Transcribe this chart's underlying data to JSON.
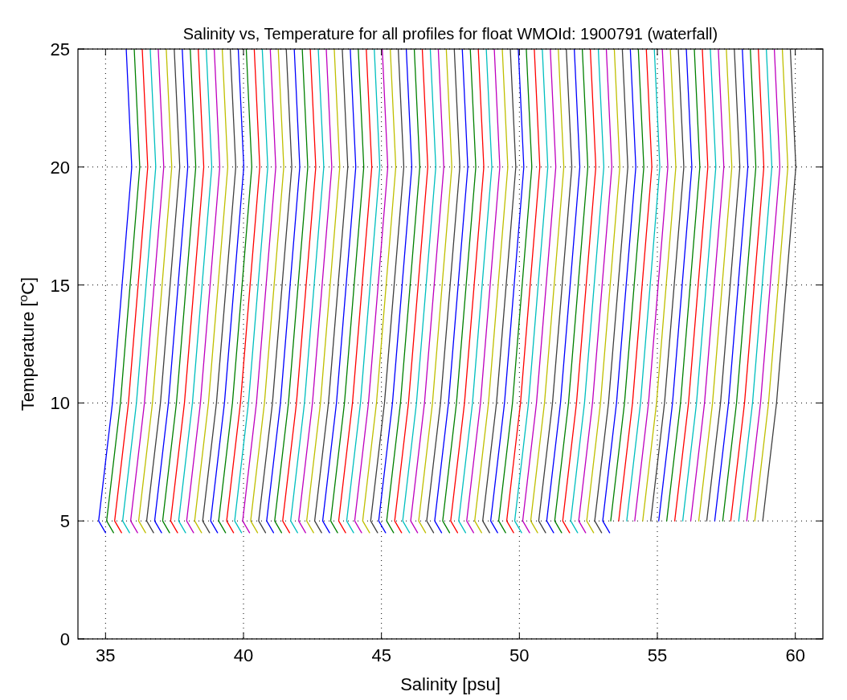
{
  "chart_data": {
    "type": "line",
    "title": "Salinity vs, Temperature for all profiles for float WMOId: 1900791 (waterfall)",
    "xlabel": "Salinity [psu]",
    "ylabel": "Temperature [$^{o}$C]",
    "xlim": [
      34,
      61
    ],
    "ylim": [
      0,
      25
    ],
    "xticks": [
      35,
      40,
      45,
      50,
      55,
      60
    ],
    "yticks": [
      0,
      5,
      10,
      15,
      20,
      25
    ],
    "grid": true,
    "series": [
      {
        "color": "#0000ff",
        "x": [
          35.0,
          34.75,
          35.25,
          35.6,
          35.95,
          35.75
        ],
        "values": [
          4.5,
          5,
          10,
          15,
          20,
          25
        ]
      },
      {
        "color": "#008000",
        "x": [
          35.29,
          35.04,
          35.54,
          35.89,
          36.24,
          36.04
        ],
        "values": [
          4.5,
          5,
          10,
          15,
          20,
          25
        ]
      },
      {
        "color": "#ff0000",
        "x": [
          35.58,
          35.33,
          35.83,
          36.18,
          36.53,
          36.33
        ],
        "values": [
          4.5,
          5,
          10,
          15,
          20,
          25
        ]
      },
      {
        "color": "#00bfbf",
        "x": [
          35.87,
          35.62,
          36.12,
          36.47,
          36.82,
          36.62
        ],
        "values": [
          4.5,
          5,
          10,
          15,
          20,
          25
        ]
      },
      {
        "color": "#bf00bf",
        "x": [
          36.16,
          35.91,
          36.41,
          36.76,
          37.11,
          36.91
        ],
        "values": [
          4.5,
          5,
          10,
          15,
          20,
          25
        ]
      },
      {
        "color": "#bfbf00",
        "x": [
          36.45,
          36.2,
          36.7,
          37.05,
          37.4,
          37.2
        ],
        "values": [
          4.5,
          5,
          10,
          15,
          20,
          25
        ]
      },
      {
        "color": "#404040",
        "x": [
          36.74,
          36.49,
          36.99,
          37.34,
          37.69,
          37.49
        ],
        "values": [
          4.5,
          5,
          10,
          15,
          20,
          25
        ]
      },
      {
        "color": "#0000ff",
        "x": [
          37.03,
          36.78,
          37.28,
          37.63,
          37.98,
          37.78
        ],
        "values": [
          4.5,
          5,
          10,
          15,
          20,
          25
        ]
      },
      {
        "color": "#008000",
        "x": [
          37.32,
          37.07,
          37.57,
          37.92,
          38.27,
          38.07
        ],
        "values": [
          4.5,
          5,
          10,
          15,
          20,
          25
        ]
      },
      {
        "color": "#ff0000",
        "x": [
          37.61,
          37.36,
          37.86,
          38.21,
          38.56,
          38.36
        ],
        "values": [
          4.5,
          5,
          10,
          15,
          20,
          25
        ]
      },
      {
        "color": "#00bfbf",
        "x": [
          37.9,
          37.65,
          38.15,
          38.5,
          38.85,
          38.65
        ],
        "values": [
          4.5,
          5,
          10,
          15,
          20,
          25
        ]
      },
      {
        "color": "#bf00bf",
        "x": [
          38.19,
          37.94,
          38.44,
          38.79,
          39.14,
          38.94
        ],
        "values": [
          4.5,
          5,
          10,
          15,
          20,
          25
        ]
      },
      {
        "color": "#bfbf00",
        "x": [
          38.48,
          38.23,
          38.73,
          39.08,
          39.43,
          39.23
        ],
        "values": [
          4.5,
          5,
          10,
          15,
          20,
          25
        ]
      },
      {
        "color": "#404040",
        "x": [
          38.77,
          38.52,
          39.02,
          39.37,
          39.72,
          39.52
        ],
        "values": [
          4.5,
          5,
          10,
          15,
          20,
          25
        ]
      },
      {
        "color": "#0000ff",
        "x": [
          39.06,
          38.81,
          39.31,
          39.66,
          40.01,
          39.81
        ],
        "values": [
          4.5,
          5,
          10,
          15,
          20,
          25
        ]
      },
      {
        "color": "#008000",
        "x": [
          39.35,
          39.1,
          39.6,
          39.95,
          40.3,
          40.1
        ],
        "values": [
          4.5,
          5,
          10,
          15,
          20,
          25
        ]
      },
      {
        "color": "#ff0000",
        "x": [
          39.64,
          39.39,
          39.89,
          40.24,
          40.59,
          40.39
        ],
        "values": [
          4.5,
          5,
          10,
          15,
          20,
          25
        ]
      },
      {
        "color": "#00bfbf",
        "x": [
          39.93,
          39.68,
          40.18,
          40.53,
          40.88,
          40.68
        ],
        "values": [
          4.5,
          5,
          10,
          15,
          20,
          25
        ]
      },
      {
        "color": "#bf00bf",
        "x": [
          40.22,
          39.97,
          40.47,
          40.82,
          41.17,
          40.97
        ],
        "values": [
          4.5,
          5,
          10,
          15,
          20,
          25
        ]
      },
      {
        "color": "#bfbf00",
        "x": [
          40.51,
          40.26,
          40.76,
          41.11,
          41.46,
          41.26
        ],
        "values": [
          4.5,
          5,
          10,
          15,
          20,
          25
        ]
      },
      {
        "color": "#404040",
        "x": [
          40.8,
          40.55,
          41.05,
          41.4,
          41.75,
          41.55
        ],
        "values": [
          4.5,
          5,
          10,
          15,
          20,
          25
        ]
      },
      {
        "color": "#0000ff",
        "x": [
          41.09,
          40.84,
          41.34,
          41.69,
          42.04,
          41.84
        ],
        "values": [
          4.5,
          5,
          10,
          15,
          20,
          25
        ]
      },
      {
        "color": "#008000",
        "x": [
          41.38,
          41.13,
          41.63,
          41.98,
          42.33,
          42.13
        ],
        "values": [
          4.5,
          5,
          10,
          15,
          20,
          25
        ]
      },
      {
        "color": "#ff0000",
        "x": [
          41.67,
          41.42,
          41.92,
          42.27,
          42.62,
          42.42
        ],
        "values": [
          4.5,
          5,
          10,
          15,
          20,
          25
        ]
      },
      {
        "color": "#00bfbf",
        "x": [
          41.96,
          41.71,
          42.21,
          42.56,
          42.91,
          42.71
        ],
        "values": [
          4.5,
          5,
          10,
          15,
          20,
          25
        ]
      },
      {
        "color": "#bf00bf",
        "x": [
          42.25,
          42,
          42.5,
          42.85,
          43.2,
          43
        ],
        "values": [
          4.5,
          5,
          10,
          15,
          20,
          25
        ]
      },
      {
        "color": "#bfbf00",
        "x": [
          42.54,
          42.29,
          42.79,
          43.14,
          43.49,
          43.29
        ],
        "values": [
          4.5,
          5,
          10,
          15,
          20,
          25
        ]
      },
      {
        "color": "#404040",
        "x": [
          42.83,
          42.58,
          43.08,
          43.43,
          43.78,
          43.58
        ],
        "values": [
          4.5,
          5,
          10,
          15,
          20,
          25
        ]
      },
      {
        "color": "#0000ff",
        "x": [
          43.12,
          42.87,
          43.37,
          43.72,
          44.07,
          43.87
        ],
        "values": [
          4.5,
          5,
          10,
          15,
          20,
          25
        ]
      },
      {
        "color": "#008000",
        "x": [
          43.41,
          43.16,
          43.66,
          44.01,
          44.36,
          44.16
        ],
        "values": [
          4.5,
          5,
          10,
          15,
          20,
          25
        ]
      },
      {
        "color": "#ff0000",
        "x": [
          43.7,
          43.45,
          43.95,
          44.3,
          44.65,
          44.45
        ],
        "values": [
          4.5,
          5,
          10,
          15,
          20,
          25
        ]
      },
      {
        "color": "#00bfbf",
        "x": [
          43.99,
          43.74,
          44.24,
          44.59,
          44.94,
          44.74
        ],
        "values": [
          4.5,
          5,
          10,
          15,
          20,
          25
        ]
      },
      {
        "color": "#bf00bf",
        "x": [
          44.28,
          44.03,
          44.53,
          44.88,
          45.23,
          45.03
        ],
        "values": [
          4.5,
          5,
          10,
          15,
          20,
          25
        ]
      },
      {
        "color": "#bfbf00",
        "x": [
          44.57,
          44.32,
          44.82,
          45.17,
          45.52,
          45.32
        ],
        "values": [
          4.5,
          5,
          10,
          15,
          20,
          25
        ]
      },
      {
        "color": "#404040",
        "x": [
          44.86,
          44.61,
          45.11,
          45.46,
          45.81,
          45.61
        ],
        "values": [
          4.5,
          5,
          10,
          15,
          20,
          25
        ]
      },
      {
        "color": "#0000ff",
        "x": [
          45.15,
          44.9,
          45.4,
          45.75,
          46.1,
          45.9
        ],
        "values": [
          4.5,
          5,
          10,
          15,
          20,
          25
        ]
      },
      {
        "color": "#008000",
        "x": [
          45.44,
          45.19,
          45.69,
          46.04,
          46.39,
          46.19
        ],
        "values": [
          4.5,
          5,
          10,
          15,
          20,
          25
        ]
      },
      {
        "color": "#ff0000",
        "x": [
          45.73,
          45.48,
          45.98,
          46.33,
          46.68,
          46.48
        ],
        "values": [
          4.5,
          5,
          10,
          15,
          20,
          25
        ]
      },
      {
        "color": "#00bfbf",
        "x": [
          46.02,
          45.77,
          46.27,
          46.62,
          46.97,
          46.77
        ],
        "values": [
          4.5,
          5,
          10,
          15,
          20,
          25
        ]
      },
      {
        "color": "#bf00bf",
        "x": [
          46.31,
          46.06,
          46.56,
          46.91,
          47.26,
          47.06
        ],
        "values": [
          4.5,
          5,
          10,
          15,
          20,
          25
        ]
      },
      {
        "color": "#bfbf00",
        "x": [
          46.6,
          46.35,
          46.85,
          47.2,
          47.55,
          47.35
        ],
        "values": [
          4.5,
          5,
          10,
          15,
          20,
          25
        ]
      },
      {
        "color": "#404040",
        "x": [
          46.89,
          46.64,
          47.14,
          47.49,
          47.84,
          47.64
        ],
        "values": [
          4.5,
          5,
          10,
          15,
          20,
          25
        ]
      },
      {
        "color": "#0000ff",
        "x": [
          47.18,
          46.93,
          47.43,
          47.78,
          48.13,
          47.93
        ],
        "values": [
          4.5,
          5,
          10,
          15,
          20,
          25
        ]
      },
      {
        "color": "#008000",
        "x": [
          47.47,
          47.22,
          47.72,
          48.07,
          48.42,
          48.22
        ],
        "values": [
          4.5,
          5,
          10,
          15,
          20,
          25
        ]
      },
      {
        "color": "#ff0000",
        "x": [
          47.76,
          47.51,
          48.01,
          48.36,
          48.71,
          48.51
        ],
        "values": [
          4.5,
          5,
          10,
          15,
          20,
          25
        ]
      },
      {
        "color": "#00bfbf",
        "x": [
          48.05,
          47.8,
          48.3,
          48.65,
          49,
          48.8
        ],
        "values": [
          4.5,
          5,
          10,
          15,
          20,
          25
        ]
      },
      {
        "color": "#bf00bf",
        "x": [
          48.34,
          48.09,
          48.59,
          48.94,
          49.29,
          49.09
        ],
        "values": [
          4.5,
          5,
          10,
          15,
          20,
          25
        ]
      },
      {
        "color": "#bfbf00",
        "x": [
          48.63,
          48.38,
          48.88,
          49.23,
          49.58,
          49.38
        ],
        "values": [
          4.5,
          5,
          10,
          15,
          20,
          25
        ]
      },
      {
        "color": "#404040",
        "x": [
          48.92,
          48.67,
          49.17,
          49.52,
          49.87,
          49.67
        ],
        "values": [
          4.5,
          5,
          10,
          15,
          20,
          25
        ]
      },
      {
        "color": "#0000ff",
        "x": [
          49.21,
          48.96,
          49.46,
          49.81,
          50.16,
          49.96
        ],
        "values": [
          4.5,
          5,
          10,
          15,
          20,
          25
        ]
      },
      {
        "color": "#008000",
        "x": [
          49.5,
          49.25,
          49.75,
          50.1,
          50.45,
          50.25
        ],
        "values": [
          4.5,
          5,
          10,
          15,
          20,
          25
        ]
      },
      {
        "color": "#ff0000",
        "x": [
          49.79,
          49.54,
          50.04,
          50.39,
          50.74,
          50.54
        ],
        "values": [
          4.5,
          5,
          10,
          15,
          20,
          25
        ]
      },
      {
        "color": "#00bfbf",
        "x": [
          50.08,
          49.83,
          50.33,
          50.68,
          51.03,
          50.83
        ],
        "values": [
          4.5,
          5,
          10,
          15,
          20,
          25
        ]
      },
      {
        "color": "#bf00bf",
        "x": [
          50.37,
          50.12,
          50.62,
          50.97,
          51.32,
          51.12
        ],
        "values": [
          4.5,
          5,
          10,
          15,
          20,
          25
        ]
      },
      {
        "color": "#bfbf00",
        "x": [
          50.66,
          50.41,
          50.91,
          51.26,
          51.61,
          51.41
        ],
        "values": [
          4.5,
          5,
          10,
          15,
          20,
          25
        ]
      },
      {
        "color": "#404040",
        "x": [
          50.95,
          50.7,
          51.2,
          51.55,
          51.9,
          51.7
        ],
        "values": [
          4.5,
          5,
          10,
          15,
          20,
          25
        ]
      },
      {
        "color": "#0000ff",
        "x": [
          51.24,
          50.99,
          51.49,
          51.84,
          52.19,
          51.99
        ],
        "values": [
          4.5,
          5,
          10,
          15,
          20,
          25
        ]
      },
      {
        "color": "#008000",
        "x": [
          51.53,
          51.28,
          51.78,
          52.13,
          52.48,
          52.28
        ],
        "values": [
          4.5,
          5,
          10,
          15,
          20,
          25
        ]
      },
      {
        "color": "#ff0000",
        "x": [
          51.82,
          51.57,
          52.07,
          52.42,
          52.77,
          52.57
        ],
        "values": [
          4.5,
          5,
          10,
          15,
          20,
          25
        ]
      },
      {
        "color": "#00bfbf",
        "x": [
          52.11,
          51.86,
          52.36,
          52.71,
          53.06,
          52.86
        ],
        "values": [
          4.5,
          5,
          10,
          15,
          20,
          25
        ]
      },
      {
        "color": "#bf00bf",
        "x": [
          52.4,
          52.15,
          52.65,
          53,
          53.35,
          53.15
        ],
        "values": [
          4.5,
          5,
          10,
          15,
          20,
          25
        ]
      },
      {
        "color": "#bfbf00",
        "x": [
          52.69,
          52.44,
          52.94,
          53.29,
          53.64,
          53.44
        ],
        "values": [
          4.5,
          5,
          10,
          15,
          20,
          25
        ]
      },
      {
        "color": "#404040",
        "x": [
          52.98,
          52.73,
          53.23,
          53.58,
          53.93,
          53.73
        ],
        "values": [
          4.5,
          5,
          10,
          15,
          20,
          25
        ]
      },
      {
        "color": "#0000ff",
        "x": [
          53.27,
          53.02,
          53.52,
          53.87,
          54.22,
          54.02
        ],
        "values": [
          4.5,
          5,
          10,
          15,
          20,
          25
        ]
      },
      {
        "color": "#008000",
        "x": [
          53.31,
          53.81,
          54.16,
          54.51,
          54.31
        ],
        "values": [
          5,
          10,
          15,
          20,
          25
        ]
      },
      {
        "color": "#ff0000",
        "x": [
          53.6,
          54.1,
          54.45,
          54.8,
          54.6
        ],
        "values": [
          5,
          10,
          15,
          20,
          25
        ]
      },
      {
        "color": "#00bfbf",
        "x": [
          53.89,
          54.39,
          54.74,
          55.09,
          54.89
        ],
        "values": [
          5,
          10,
          15,
          20,
          25
        ]
      },
      {
        "color": "#bf00bf",
        "x": [
          54.18,
          54.68,
          55.03,
          55.38,
          55.18
        ],
        "values": [
          5,
          10,
          15,
          20,
          25
        ]
      },
      {
        "color": "#bfbf00",
        "x": [
          54.47,
          54.97,
          55.32,
          55.67,
          55.47
        ],
        "values": [
          5,
          10,
          15,
          20,
          25
        ]
      },
      {
        "color": "#404040",
        "x": [
          54.76,
          55.26,
          55.61,
          55.96,
          55.76
        ],
        "values": [
          5,
          10,
          15,
          20,
          25
        ]
      },
      {
        "color": "#0000ff",
        "x": [
          55.05,
          55.55,
          55.9,
          56.25,
          56.05
        ],
        "values": [
          5,
          10,
          15,
          20,
          25
        ]
      },
      {
        "color": "#008000",
        "x": [
          55.34,
          55.84,
          56.19,
          56.54,
          56.34
        ],
        "values": [
          5,
          10,
          15,
          20,
          25
        ]
      },
      {
        "color": "#ff0000",
        "x": [
          55.63,
          56.13,
          56.48,
          56.83,
          56.63
        ],
        "values": [
          5,
          10,
          15,
          20,
          25
        ]
      },
      {
        "color": "#00bfbf",
        "x": [
          55.92,
          56.42,
          56.77,
          57.12,
          56.92
        ],
        "values": [
          5,
          10,
          15,
          20,
          25
        ]
      },
      {
        "color": "#bf00bf",
        "x": [
          56.21,
          56.71,
          57.06,
          57.41,
          57.21
        ],
        "values": [
          5,
          10,
          15,
          20,
          25
        ]
      },
      {
        "color": "#bfbf00",
        "x": [
          56.5,
          57,
          57.35,
          57.7,
          57.5
        ],
        "values": [
          5,
          10,
          15,
          20,
          25
        ]
      },
      {
        "color": "#404040",
        "x": [
          56.79,
          57.29,
          57.64,
          57.99,
          57.79
        ],
        "values": [
          5,
          10,
          15,
          20,
          25
        ]
      },
      {
        "color": "#0000ff",
        "x": [
          57.08,
          57.58,
          57.93,
          58.28,
          58.08
        ],
        "values": [
          5,
          10,
          15,
          20,
          25
        ]
      },
      {
        "color": "#008000",
        "x": [
          57.37,
          57.87,
          58.22,
          58.57,
          58.37
        ],
        "values": [
          5,
          10,
          15,
          20,
          25
        ]
      },
      {
        "color": "#ff0000",
        "x": [
          57.66,
          58.16,
          58.51,
          58.86,
          58.66
        ],
        "values": [
          5,
          10,
          15,
          20,
          25
        ]
      },
      {
        "color": "#00bfbf",
        "x": [
          57.95,
          58.45,
          58.8,
          59.15,
          58.95
        ],
        "values": [
          5,
          10,
          15,
          20,
          25
        ]
      },
      {
        "color": "#bf00bf",
        "x": [
          58.24,
          58.74,
          59.09,
          59.44,
          59.24
        ],
        "values": [
          5,
          10,
          15,
          20,
          25
        ]
      },
      {
        "color": "#bfbf00",
        "x": [
          58.53,
          59.03,
          59.38,
          59.73,
          59.53
        ],
        "values": [
          5,
          10,
          15,
          20,
          25
        ]
      },
      {
        "color": "#404040",
        "x": [
          58.82,
          59.32,
          59.67,
          60.02,
          59.82
        ],
        "values": [
          5,
          10,
          15,
          20,
          25
        ]
      }
    ]
  }
}
